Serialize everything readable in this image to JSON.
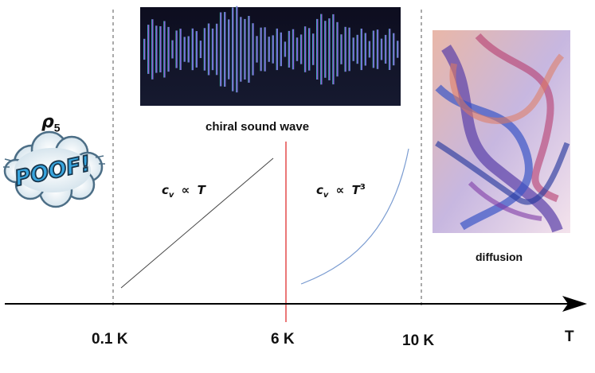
{
  "regions": {
    "left": {
      "symbol": "ρ",
      "subscript": "5",
      "badge_text": "POOF!"
    },
    "middle_left": {
      "formula_lhs": "c",
      "formula_sub": "v",
      "formula_rel": "∝",
      "formula_rhs": "T"
    },
    "middle_right": {
      "formula_lhs": "c",
      "formula_sub": "v",
      "formula_rel": "∝",
      "formula_rhs": "T",
      "formula_power": "3"
    },
    "top": {
      "caption": "chiral sound wave"
    },
    "right": {
      "caption": "diffusion"
    }
  },
  "axis": {
    "ticks": [
      "0.1 K",
      "6 K",
      "10 K"
    ],
    "label": "T"
  },
  "colors": {
    "linear_line": "#444444",
    "cubic_curve": "#7b9cd1",
    "divider": "#e03030",
    "dashed": "#555555"
  }
}
